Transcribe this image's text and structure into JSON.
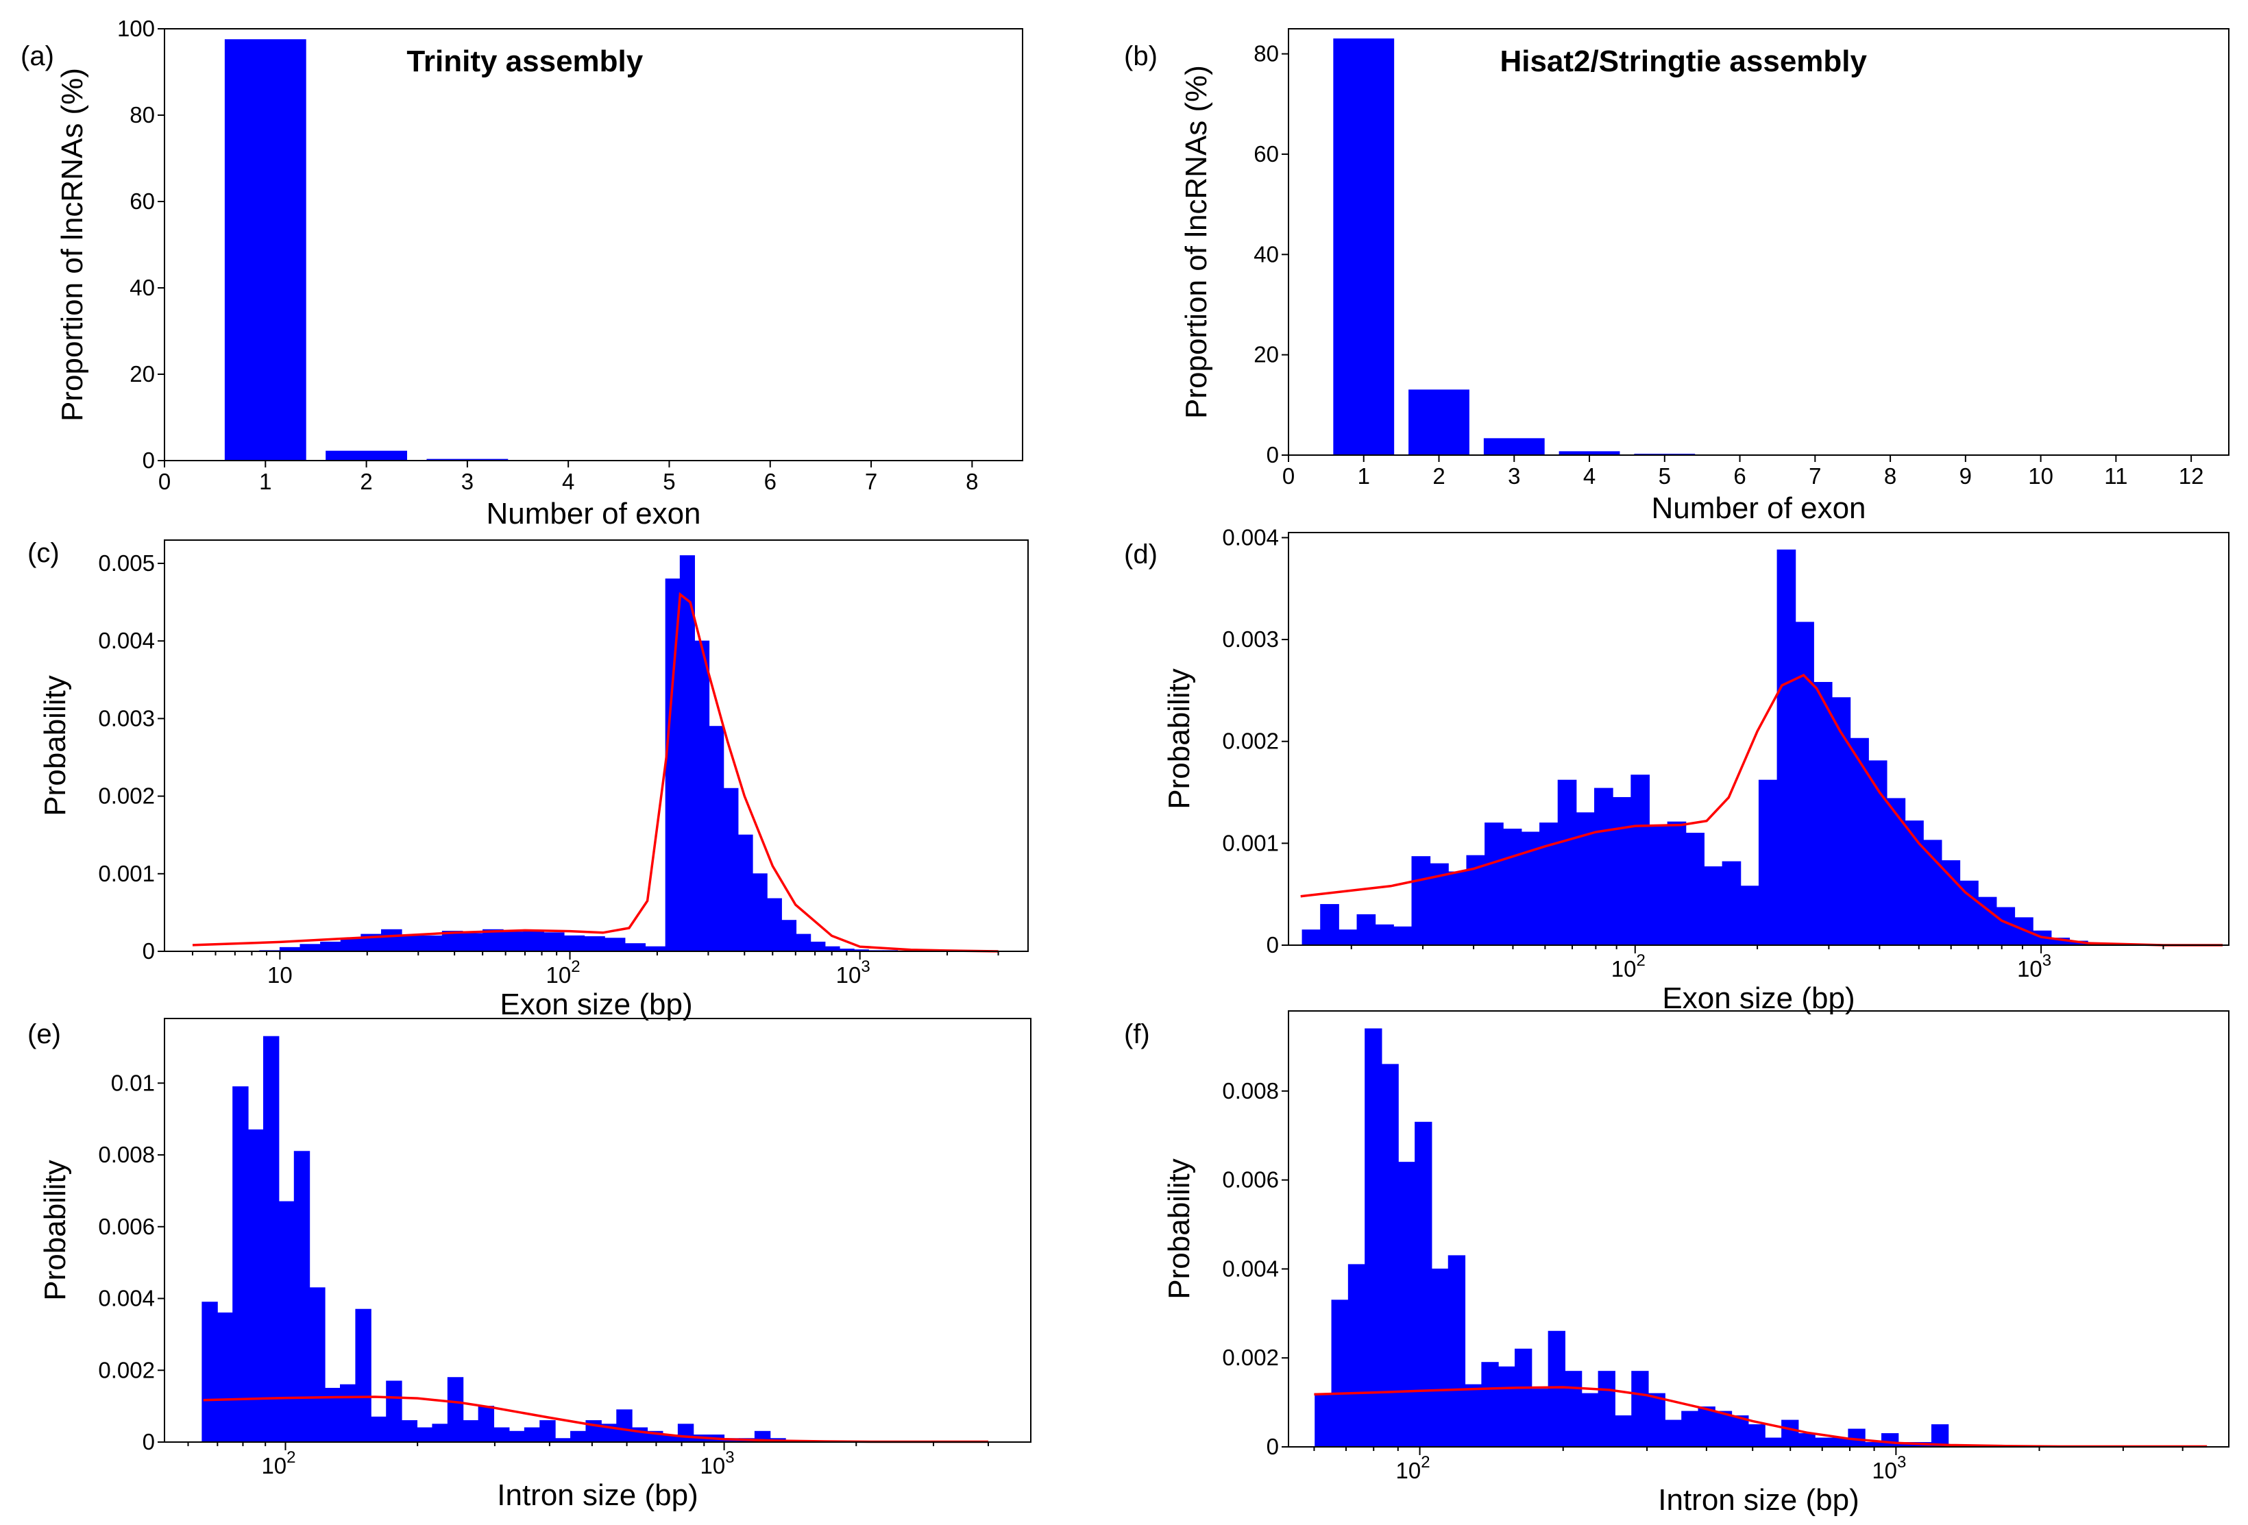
{
  "figure": {
    "panels": [
      "(a)",
      "(b)",
      "(c)",
      "(d)",
      "(e)",
      "(f)"
    ]
  },
  "chart_data": [
    {
      "id": "a",
      "type": "bar",
      "panel_label": "(a)",
      "title": "Trinity assembly",
      "xlabel": "Number of exon",
      "ylabel": "Proportion of lncRNAs (%)",
      "xlim": [
        0,
        8.5
      ],
      "ylim": [
        0,
        100
      ],
      "xticks": [
        0,
        1,
        2,
        3,
        4,
        5,
        6,
        7,
        8
      ],
      "yticks": [
        0,
        20,
        40,
        60,
        80,
        100
      ],
      "categories": [
        1,
        2,
        3
      ],
      "values": [
        97.5,
        2.2,
        0.3
      ],
      "bar_width": 0.8
    },
    {
      "id": "b",
      "type": "bar",
      "panel_label": "(b)",
      "title": "Hisat2/Stringtie assembly",
      "xlabel": "Number of exon",
      "ylabel": "Proportion of lncRNAs (%)",
      "xlim": [
        0,
        12.5
      ],
      "ylim": [
        0,
        85
      ],
      "xticks": [
        0,
        1,
        2,
        3,
        4,
        5,
        6,
        7,
        8,
        9,
        10,
        11,
        12
      ],
      "yticks": [
        0,
        20,
        40,
        60,
        80
      ],
      "categories": [
        1,
        2,
        3,
        4,
        5
      ],
      "values": [
        83,
        13,
        3.3,
        0.7,
        0.2
      ],
      "bar_width": 0.8
    },
    {
      "id": "c",
      "type": "histogram",
      "panel_label": "(c)",
      "title": "",
      "xlabel": "Exon size (bp)",
      "ylabel": "Probability",
      "xscale": "log",
      "xlim": [
        4,
        3800
      ],
      "ylim": [
        0,
        0.0053
      ],
      "xticks": [
        {
          "v": 10,
          "b": "10",
          "e": ""
        },
        {
          "v": 100,
          "b": "10",
          "e": "2"
        },
        {
          "v": 1000,
          "b": "10",
          "e": "3"
        }
      ],
      "yticks": [
        {
          "v": 0,
          "t": "0"
        },
        {
          "v": 0.001,
          "t": "0.001"
        },
        {
          "v": 0.002,
          "t": "0.002"
        },
        {
          "v": 0.003,
          "t": "0.003"
        },
        {
          "v": 0.004,
          "t": "0.004"
        },
        {
          "v": 0.005,
          "t": "0.005"
        }
      ],
      "bin_edges_log10": [
        0.86,
        0.93,
        1.0,
        1.07,
        1.14,
        1.21,
        1.28,
        1.35,
        1.42,
        1.49,
        1.56,
        1.63,
        1.7,
        1.77,
        1.84,
        1.91,
        1.98,
        2.05,
        2.12,
        2.19,
        2.26,
        2.33,
        2.38,
        2.43,
        2.48,
        2.53,
        2.58,
        2.63,
        2.68,
        2.73,
        2.78,
        2.83,
        2.88,
        2.93,
        2.98,
        3.03,
        3.08,
        3.13,
        3.18,
        3.23,
        3.28,
        3.33,
        3.38,
        3.43,
        3.48
      ],
      "values": [
        0.0,
        1e-05,
        5e-05,
        9e-05,
        0.00012,
        0.00016,
        0.00022,
        0.00028,
        0.00021,
        0.0002,
        0.00026,
        0.00023,
        0.00028,
        0.00025,
        0.00027,
        0.00024,
        0.0002,
        0.00019,
        0.00017,
        0.0001,
        6e-05,
        0.0048,
        0.0051,
        0.004,
        0.0029,
        0.0021,
        0.0015,
        0.001,
        0.00068,
        0.0004,
        0.00022,
        0.00012,
        6e-05,
        3e-05,
        2e-05,
        1e-05,
        1e-05,
        0.0,
        0.0,
        0.0,
        0.0,
        0.0,
        0.0,
        0.0
      ],
      "fit_curve": {
        "x": [
          5,
          10,
          20,
          40,
          70,
          100,
          130,
          160,
          185,
          215,
          240,
          260,
          300,
          350,
          400,
          500,
          600,
          800,
          1000,
          1500,
          2000,
          3000
        ],
        "y": [
          8e-05,
          0.00012,
          0.00018,
          0.00024,
          0.00027,
          0.00026,
          0.00024,
          0.0003,
          0.00065,
          0.0025,
          0.0046,
          0.0045,
          0.0036,
          0.0027,
          0.002,
          0.0011,
          0.0006,
          0.0002,
          6e-05,
          2e-05,
          1e-05,
          0.0
        ]
      }
    },
    {
      "id": "d",
      "type": "histogram",
      "panel_label": "(d)",
      "title": "",
      "xlabel": "Exon size (bp)",
      "ylabel": "Probability",
      "xscale": "log",
      "xlim": [
        14,
        2900
      ],
      "ylim": [
        0,
        0.00405
      ],
      "xticks": [
        {
          "v": 100,
          "b": "10",
          "e": "2"
        },
        {
          "v": 1000,
          "b": "10",
          "e": "3"
        }
      ],
      "yticks": [
        {
          "v": 0,
          "t": "0"
        },
        {
          "v": 0.001,
          "t": "0.001"
        },
        {
          "v": 0.002,
          "t": "0.002"
        },
        {
          "v": 0.003,
          "t": "0.003"
        },
        {
          "v": 0.004,
          "t": "0.004"
        }
      ],
      "bin_edges_log10": [
        1.18,
        1.225,
        1.27,
        1.315,
        1.36,
        1.405,
        1.45,
        1.495,
        1.54,
        1.585,
        1.63,
        1.675,
        1.72,
        1.765,
        1.81,
        1.855,
        1.9,
        1.945,
        1.99,
        2.035,
        2.08,
        2.125,
        2.17,
        2.215,
        2.26,
        2.305,
        2.35,
        2.395,
        2.44,
        2.485,
        2.53,
        2.575,
        2.62,
        2.665,
        2.71,
        2.755,
        2.8,
        2.845,
        2.89,
        2.935,
        2.98,
        3.025,
        3.07,
        3.115,
        3.16,
        3.205,
        3.25,
        3.295,
        3.34,
        3.385,
        3.43
      ],
      "values": [
        0.00015,
        0.0004,
        0.00015,
        0.0003,
        0.0002,
        0.00018,
        0.00087,
        0.0008,
        0.00072,
        0.00088,
        0.0012,
        0.00114,
        0.00111,
        0.0012,
        0.00162,
        0.0013,
        0.00154,
        0.00145,
        0.00167,
        0.00118,
        0.00121,
        0.0011,
        0.00077,
        0.00082,
        0.00058,
        0.00162,
        0.00388,
        0.00317,
        0.00258,
        0.00243,
        0.00203,
        0.00181,
        0.00144,
        0.00122,
        0.00103,
        0.00083,
        0.00063,
        0.00047,
        0.00037,
        0.00027,
        0.00014,
        7e-05,
        4e-05,
        2e-05,
        1e-05,
        1e-05,
        0.0,
        0.0,
        0.0,
        0.0
      ],
      "fit_curve": {
        "x": [
          15,
          25,
          40,
          60,
          80,
          100,
          130,
          150,
          170,
          200,
          230,
          260,
          280,
          320,
          400,
          500,
          650,
          800,
          1000,
          1300,
          2000,
          2800
        ],
        "y": [
          0.00048,
          0.00058,
          0.00075,
          0.00097,
          0.00111,
          0.00117,
          0.00118,
          0.00122,
          0.00145,
          0.0021,
          0.00255,
          0.00265,
          0.00252,
          0.0021,
          0.0015,
          0.001,
          0.00052,
          0.00024,
          8e-05,
          2e-05,
          0.0,
          0.0
        ]
      }
    },
    {
      "id": "e",
      "type": "histogram",
      "panel_label": "(e)",
      "title": "",
      "xlabel": "Intron size (bp)",
      "ylabel": "Probability",
      "xscale": "log",
      "xlim": [
        53,
        5000
      ],
      "ylim": [
        0,
        0.0118
      ],
      "xticks": [
        {
          "v": 100,
          "b": "10",
          "e": "2"
        },
        {
          "v": 1000,
          "b": "10",
          "e": "3"
        }
      ],
      "yticks": [
        {
          "v": 0,
          "t": "0"
        },
        {
          "v": 0.002,
          "t": "0.002"
        },
        {
          "v": 0.004,
          "t": "0.004"
        },
        {
          "v": 0.006,
          "t": "0.006"
        },
        {
          "v": 0.008,
          "t": "0.008"
        },
        {
          "v": 0.01,
          "t": "0.01"
        }
      ],
      "bin_edges_log10": [
        1.81,
        1.845,
        1.88,
        1.915,
        1.95,
        1.985,
        2.02,
        2.055,
        2.09,
        2.125,
        2.16,
        2.195,
        2.23,
        2.265,
        2.3,
        2.335,
        2.37,
        2.405,
        2.44,
        2.475,
        2.51,
        2.545,
        2.58,
        2.615,
        2.65,
        2.685,
        2.72,
        2.755,
        2.79,
        2.825,
        2.86,
        2.895,
        2.93,
        2.965,
        3.0,
        3.035,
        3.07,
        3.105,
        3.14,
        3.175,
        3.21,
        3.245,
        3.28,
        3.315,
        3.35
      ],
      "values": [
        0.0039,
        0.0036,
        0.0099,
        0.0087,
        0.0113,
        0.0067,
        0.0081,
        0.0043,
        0.0015,
        0.0016,
        0.0037,
        0.0007,
        0.0017,
        0.0006,
        0.0004,
        0.0005,
        0.0018,
        0.0006,
        0.001,
        0.0004,
        0.0003,
        0.0004,
        0.0006,
        0.0001,
        0.0003,
        0.0006,
        0.0005,
        0.0009,
        0.0004,
        0.0003,
        0.0002,
        0.0005,
        0.0002,
        0.0002,
        0.0001,
        0.0001,
        0.0003,
        0.0001,
        0.0,
        0.0,
        0.0,
        0.0,
        0.0,
        0.0
      ],
      "fit_curve": {
        "x": [
          65,
          80,
          100,
          130,
          160,
          200,
          250,
          300,
          400,
          500,
          650,
          800,
          1000,
          1300,
          1700,
          2200,
          3000,
          4000
        ],
        "y": [
          0.00117,
          0.0012,
          0.00123,
          0.00125,
          0.00126,
          0.00122,
          0.0011,
          0.00095,
          0.00068,
          0.00048,
          0.00028,
          0.00016,
          8e-05,
          4e-05,
          2e-05,
          1e-05,
          1e-05,
          1e-05
        ]
      }
    },
    {
      "id": "f",
      "type": "histogram",
      "panel_label": "(f)",
      "title": "",
      "xlabel": "Intron size (bp)",
      "ylabel": "Probability",
      "xscale": "log",
      "xlim": [
        53,
        5000
      ],
      "ylim": [
        0,
        0.0098
      ],
      "xticks": [
        {
          "v": 100,
          "b": "10",
          "e": "2"
        },
        {
          "v": 1000,
          "b": "10",
          "e": "3"
        }
      ],
      "yticks": [
        {
          "v": 0,
          "t": "0"
        },
        {
          "v": 0.002,
          "t": "0.002"
        },
        {
          "v": 0.004,
          "t": "0.004"
        },
        {
          "v": 0.006,
          "t": "0.006"
        },
        {
          "v": 0.008,
          "t": "0.008"
        }
      ],
      "bin_edges_log10": [
        1.78,
        1.815,
        1.85,
        1.885,
        1.92,
        1.955,
        1.99,
        2.025,
        2.06,
        2.095,
        2.13,
        2.165,
        2.2,
        2.235,
        2.27,
        2.305,
        2.34,
        2.375,
        2.41,
        2.445,
        2.48,
        2.515,
        2.55,
        2.585,
        2.62,
        2.655,
        2.69,
        2.725,
        2.76,
        2.795,
        2.83,
        2.865,
        2.9,
        2.935,
        2.97,
        3.005,
        3.04,
        3.075,
        3.11,
        3.145,
        3.18,
        3.215,
        3.25
      ],
      "values": [
        0.0012,
        0.0033,
        0.0041,
        0.0094,
        0.0086,
        0.0064,
        0.0073,
        0.004,
        0.0043,
        0.0014,
        0.0019,
        0.0018,
        0.0022,
        0.0013,
        0.0026,
        0.0017,
        0.0012,
        0.0017,
        0.0007,
        0.0017,
        0.0012,
        0.0006,
        0.0008,
        0.0009,
        0.0008,
        0.0007,
        0.0005,
        0.0002,
        0.0006,
        0.0003,
        0.0002,
        0.0002,
        0.0004,
        0.0001,
        0.0003,
        0.0001,
        0.0001,
        0.0005,
        0.0,
        0.0,
        0.0,
        0.0
      ],
      "fit_curve": {
        "x": [
          60,
          80,
          100,
          130,
          160,
          200,
          250,
          300,
          400,
          500,
          650,
          800,
          1000,
          1300,
          1700,
          2200,
          3000,
          4500
        ],
        "y": [
          0.00118,
          0.00122,
          0.00126,
          0.0013,
          0.00133,
          0.00134,
          0.00128,
          0.00116,
          0.00085,
          0.00058,
          0.00032,
          0.00018,
          9e-05,
          4e-05,
          2e-05,
          1e-05,
          1e-05,
          1e-05
        ]
      }
    }
  ]
}
